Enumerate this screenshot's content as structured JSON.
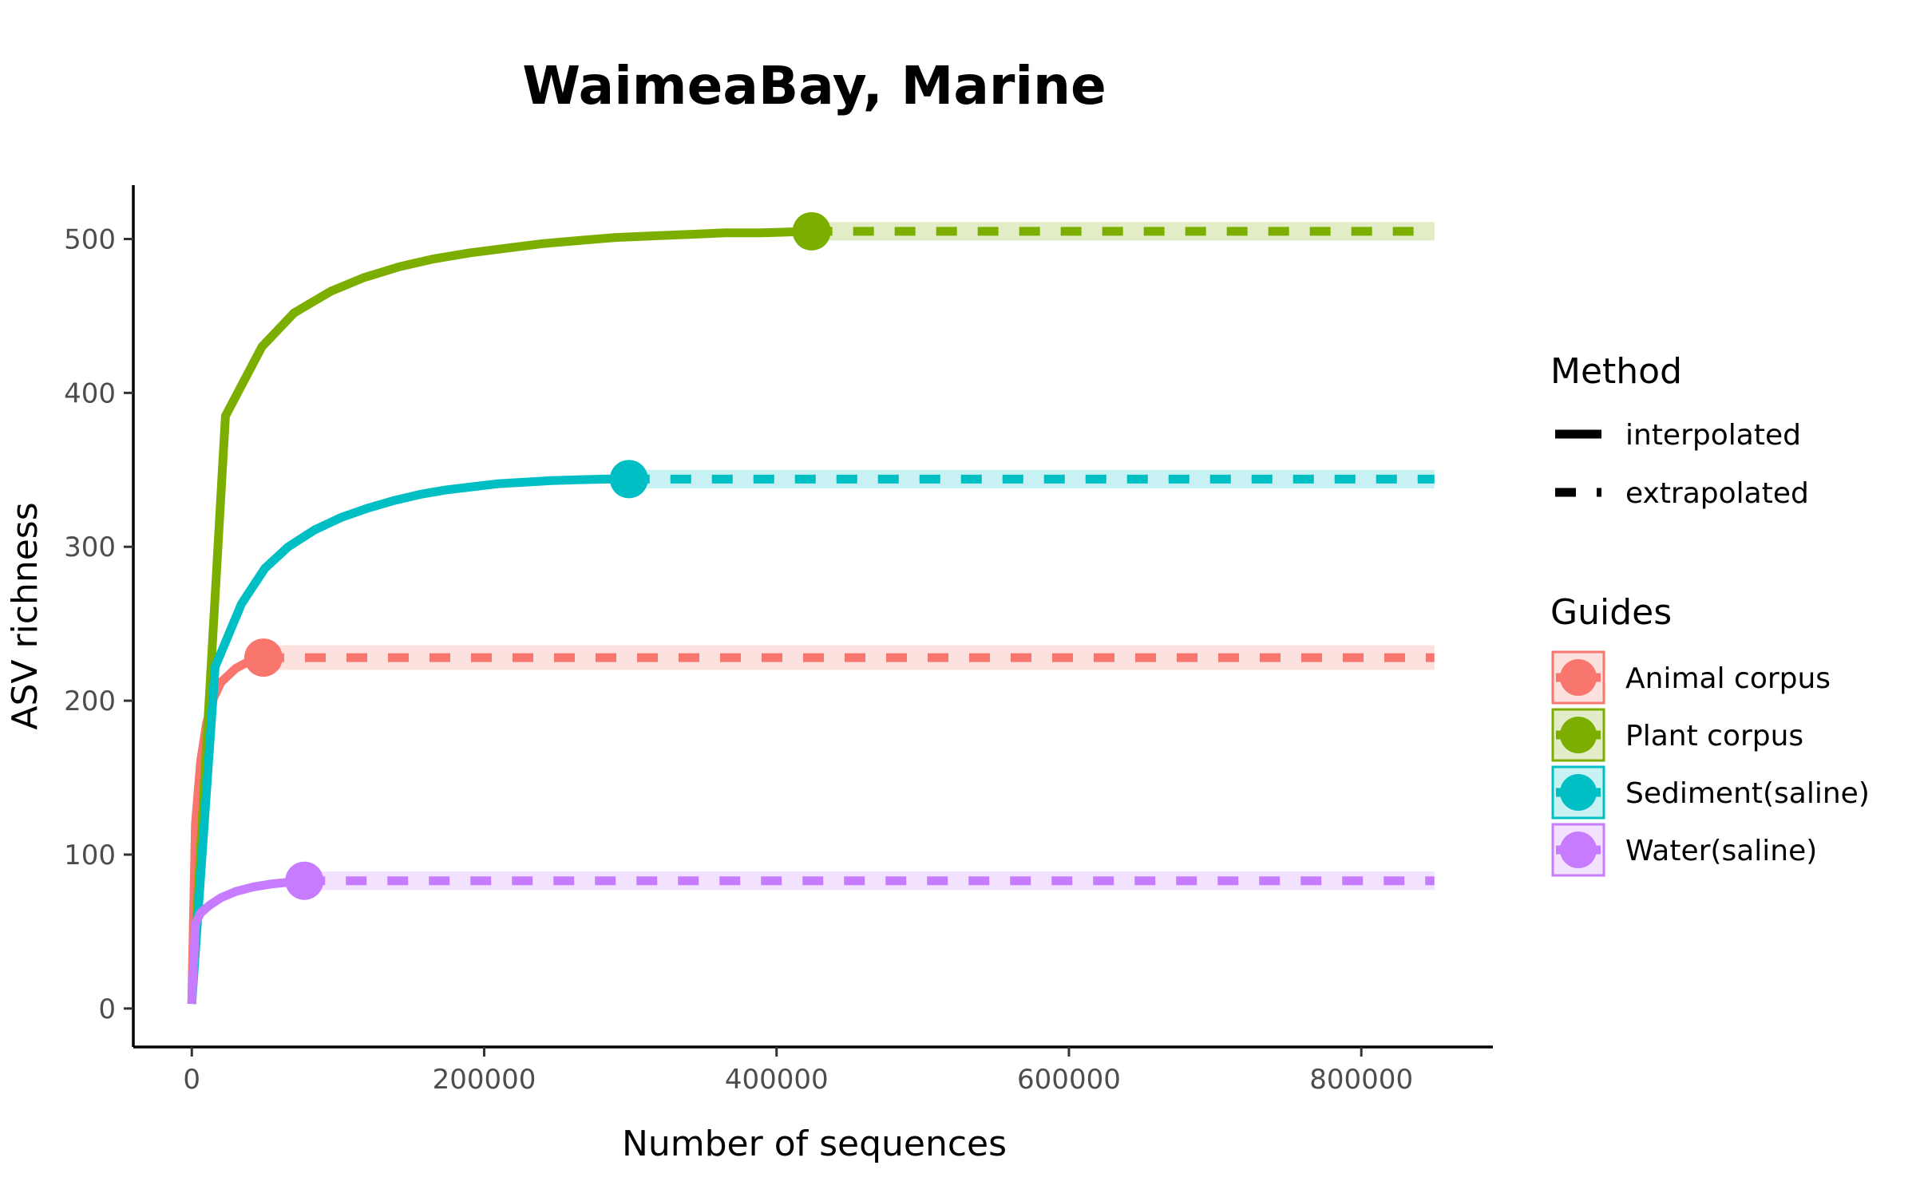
{
  "chart_data": {
    "type": "line",
    "title": "WaimeaBay, Marine",
    "xlabel": "Number of sequences",
    "ylabel": "ASV richness",
    "xlim": [
      -40000,
      890000
    ],
    "ylim": [
      -25,
      535
    ],
    "xticks": [
      0,
      200000,
      400000,
      600000,
      800000
    ],
    "xtick_labels": [
      "0",
      "200000",
      "400000",
      "600000",
      "800000"
    ],
    "yticks": [
      0,
      100,
      200,
      300,
      400,
      500
    ],
    "ytick_labels": [
      "0",
      "100",
      "200",
      "300",
      "400",
      "500"
    ],
    "extrapolate_to": 850000,
    "legend_placement": "right",
    "method_legend": {
      "title": "Method",
      "items": [
        {
          "label": "interpolated",
          "style": "solid"
        },
        {
          "label": "extrapolated",
          "style": "dashed"
        }
      ]
    },
    "guides_legend": {
      "title": "Guides"
    },
    "series": [
      {
        "name": "Animal corpus",
        "color": "#F8766D",
        "observed": [
          49000,
          228
        ],
        "ci_halfwidth": 8,
        "interpolated": [
          [
            0,
            3
          ],
          [
            2500,
            120
          ],
          [
            6000,
            160
          ],
          [
            10000,
            185
          ],
          [
            15000,
            202
          ],
          [
            20000,
            212
          ],
          [
            30000,
            221
          ],
          [
            40000,
            226
          ],
          [
            49000,
            228
          ]
        ]
      },
      {
        "name": "Plant corpus",
        "color": "#7CAE00",
        "observed": [
          424000,
          505
        ],
        "ci_halfwidth": 6,
        "interpolated": [
          [
            0,
            3
          ],
          [
            23000,
            385
          ],
          [
            48000,
            430
          ],
          [
            70000,
            452
          ],
          [
            95000,
            466
          ],
          [
            118000,
            475
          ],
          [
            142000,
            482
          ],
          [
            165000,
            487
          ],
          [
            190000,
            491
          ],
          [
            215000,
            494
          ],
          [
            240000,
            497
          ],
          [
            265000,
            499
          ],
          [
            290000,
            501
          ],
          [
            315000,
            502
          ],
          [
            340000,
            503
          ],
          [
            365000,
            504
          ],
          [
            390000,
            504
          ],
          [
            424000,
            505
          ]
        ]
      },
      {
        "name": "Sediment(saline)",
        "color": "#00BFC4",
        "observed": [
          299000,
          344
        ],
        "ci_halfwidth": 6,
        "interpolated": [
          [
            0,
            3
          ],
          [
            16000,
            222
          ],
          [
            34000,
            263
          ],
          [
            50000,
            286
          ],
          [
            66000,
            300
          ],
          [
            84000,
            311
          ],
          [
            102000,
            319
          ],
          [
            120000,
            325
          ],
          [
            138000,
            330
          ],
          [
            156000,
            334
          ],
          [
            174000,
            337
          ],
          [
            192000,
            339
          ],
          [
            210000,
            341
          ],
          [
            228000,
            342
          ],
          [
            246000,
            343
          ],
          [
            264000,
            343.5
          ],
          [
            282000,
            344
          ],
          [
            299000,
            344
          ]
        ]
      },
      {
        "name": "Water(saline)",
        "color": "#C77CFF",
        "observed": [
          77000,
          83
        ],
        "ci_halfwidth": 6,
        "interpolated": [
          [
            0,
            3
          ],
          [
            2500,
            55
          ],
          [
            6000,
            62
          ],
          [
            12000,
            67
          ],
          [
            20000,
            72
          ],
          [
            30000,
            76
          ],
          [
            42000,
            79
          ],
          [
            55000,
            81
          ],
          [
            66000,
            82
          ],
          [
            77000,
            83
          ]
        ]
      }
    ]
  }
}
